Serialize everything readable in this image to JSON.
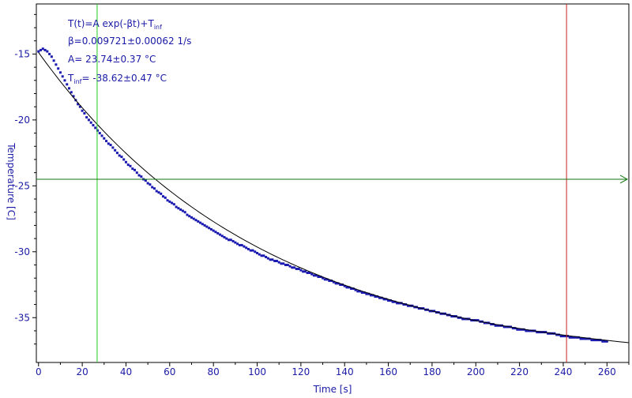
{
  "chart_data": {
    "type": "scatter",
    "xlabel": "Time [s]",
    "ylabel": "Temperature [C]",
    "xlim": [
      -1,
      270
    ],
    "ylim": [
      -38.4,
      -11.2
    ],
    "xticks": [
      0,
      20,
      40,
      60,
      80,
      100,
      120,
      140,
      160,
      180,
      200,
      220,
      240,
      260
    ],
    "yticks": [
      -15,
      -20,
      -25,
      -30,
      -35
    ],
    "grid": false,
    "annotations": {
      "model": {
        "main": "T(t)=A exp(-βt)+T",
        "sub": "inf"
      },
      "beta": "β=0.009721±0.00062 1/s",
      "amplitude": "A= 23.74±0.37 °C",
      "tinf": {
        "main": "T",
        "sub": "inf",
        "rest": "= -38.62±0.47 °C"
      }
    },
    "fit": {
      "A": 23.74,
      "beta": 0.009721,
      "T_inf": -38.62,
      "x_range": [
        0,
        270
      ]
    },
    "cursors": {
      "vertical_green_x": 26.8,
      "vertical_red_x": 241.5,
      "horizontal_green_y": -24.5
    },
    "series": [
      {
        "x": [
          0,
          1,
          2,
          3,
          4,
          5,
          6,
          7,
          8,
          9,
          10,
          12,
          14,
          16,
          18,
          20,
          22,
          24,
          26,
          28,
          30,
          35,
          40,
          45,
          50,
          55,
          60,
          65,
          70,
          75,
          80,
          85,
          90,
          95,
          100,
          105,
          110,
          115,
          120,
          125,
          130,
          135,
          140,
          145,
          150,
          155,
          160,
          165,
          170,
          175,
          180,
          185,
          190,
          195,
          200,
          205,
          210,
          215,
          220,
          225,
          230,
          235,
          240,
          245,
          250,
          255,
          260
        ],
        "y": [
          -14.8,
          -14.7,
          -14.65,
          -14.7,
          -14.8,
          -15.0,
          -15.2,
          -15.5,
          -15.8,
          -16.1,
          -16.4,
          -17.0,
          -17.6,
          -18.2,
          -18.8,
          -19.3,
          -19.8,
          -20.2,
          -20.6,
          -21.0,
          -21.4,
          -22.3,
          -23.2,
          -24.0,
          -24.8,
          -25.5,
          -26.2,
          -26.8,
          -27.4,
          -27.9,
          -28.4,
          -28.9,
          -29.3,
          -29.7,
          -30.1,
          -30.5,
          -30.8,
          -31.1,
          -31.4,
          -31.7,
          -32.0,
          -32.3,
          -32.6,
          -32.9,
          -33.2,
          -33.4,
          -33.7,
          -33.9,
          -34.1,
          -34.3,
          -34.5,
          -34.7,
          -34.9,
          -35.1,
          -35.2,
          -35.4,
          -35.6,
          -35.7,
          -35.9,
          -36.0,
          -36.1,
          -36.2,
          -36.4,
          -36.5,
          -36.6,
          -36.7,
          -36.8
        ]
      }
    ]
  }
}
